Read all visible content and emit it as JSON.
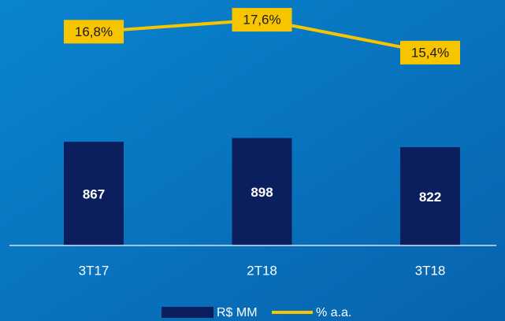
{
  "chart_data": {
    "type": "bar+line",
    "categories": [
      "3T17",
      "2T18",
      "3T18"
    ],
    "series": [
      {
        "name": "R$ MM",
        "type": "bar",
        "color": "#0b1f5e",
        "values": [
          867,
          898,
          822
        ]
      },
      {
        "name": "% a.a.",
        "type": "line",
        "axis": "y2",
        "color": "#f7c400",
        "values": [
          16.8,
          17.6,
          15.4
        ],
        "value_labels": [
          "16,8%",
          "17,6%",
          "15,4%"
        ]
      }
    ],
    "ylim": [
      0,
      2000
    ],
    "y2lim": [
      2.5,
      18.5
    ],
    "legend": "bottom"
  }
}
